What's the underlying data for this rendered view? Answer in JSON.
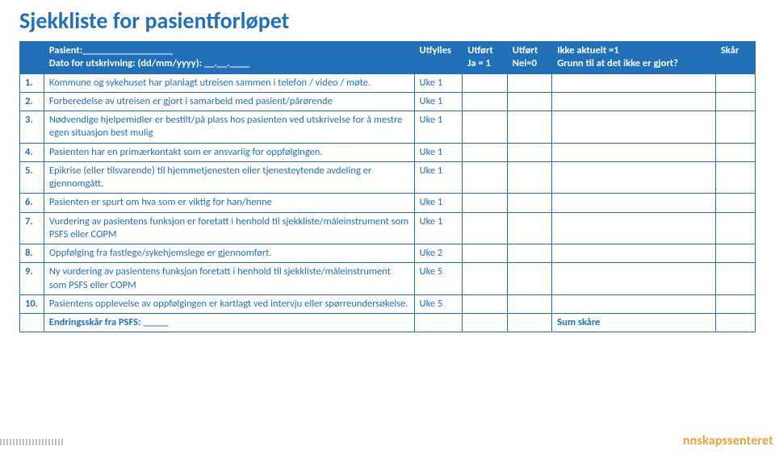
{
  "colors": {
    "title": "#2170b8",
    "header_bg": "#2170b8",
    "header_text": "#ffffff",
    "border": "#2170b8",
    "cell_text": "#2170b8",
    "footer_text": "#2170b8",
    "watermark": "#e7a23b"
  },
  "title": "Sjekkliste for pasientforløpet",
  "header": {
    "num": "",
    "desc_line1": "Pasient:__________________",
    "desc_line2": "Dato for utskrivning: (dd/mm/yyyy): __.__.____",
    "c1": "Utfylles",
    "c2_line1": "Utført",
    "c2_line2": "Ja = 1",
    "c3_line1": "Utført",
    "c3_line2": "Nei=0",
    "c4_line1": "Ikke aktuelt =1",
    "c4_line2": "Grunn til at det ikke er gjort?",
    "c5": "Skår"
  },
  "rows": [
    {
      "num": "1.",
      "text": "Kommune og sykehuset har planlagt utreisen sammen i telefon / video / møte.",
      "when": "Uke 1"
    },
    {
      "num": "2.",
      "text": "Forberedelse av utreisen er gjort i samarbeid med pasient/pårørende",
      "when": "Uke 1"
    },
    {
      "num": "3.",
      "text": "Nødvendige hjelpemidler er bestilt/på plass hos pasienten ved utskrivelse for å mestre egen situasjon best mulig",
      "when": "Uke 1"
    },
    {
      "num": "4.",
      "text": "Pasienten har en primærkontakt som er ansvarlig for oppfølgingen.",
      "when": "Uke 1"
    },
    {
      "num": "5.",
      "text": "Epikrise (eller tilsvarende) til hjemmetjenesten eller tjenesteytende avdeling er gjennomgått.",
      "when": "Uke 1"
    },
    {
      "num": "6.",
      "text": "Pasienten er spurt om hva som er viktig for han/henne",
      "when": "Uke 1"
    },
    {
      "num": "7.",
      "text": "Vurdering av pasientens funksjon er foretatt i henhold til sjekkliste/måleinstrument som PSFS eller COPM",
      "when": "Uke 1"
    },
    {
      "num": "8.",
      "text": "Oppfølging fra fastlege/sykehjemslege er gjennomført.",
      "when": "Uke 2"
    },
    {
      "num": "9.",
      "text": "Ny vurdering av pasientens funksjon foretatt i henhold til sjekkliste/måleinstrument som PSFS eller COPM",
      "when": "Uke 5"
    },
    {
      "num": "10.",
      "text": "Pasientens opplevelse av oppfølgingen er kartlagt ved intervju eller spørreundersøkelse.",
      "when": "Uke 5"
    }
  ],
  "footer": {
    "left": "Endringsskår fra PSFS: _____",
    "right": "Sum skåre"
  },
  "watermark": "nnskapssenteret"
}
